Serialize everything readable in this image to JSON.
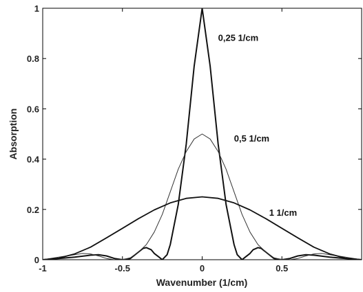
{
  "chart_data": {
    "type": "line",
    "title": "",
    "xlabel": "Wavenumber (1/cm)",
    "ylabel": "Absorption",
    "xlim": [
      -1,
      1
    ],
    "ylim": [
      0,
      1
    ],
    "grid": false,
    "legend": "none",
    "xticks": [
      -1,
      -0.5,
      0,
      0.5,
      1
    ],
    "xtick_labels": [
      "-1",
      "-0.5",
      "0",
      "0.5",
      ""
    ],
    "yticks": [
      0,
      0.2,
      0.4,
      0.6,
      0.8,
      1
    ],
    "ytick_labels": [
      "0",
      "0.2",
      "0.4",
      "0.6",
      "0.8",
      "1"
    ],
    "series": [
      {
        "label": "0,25 1/cm",
        "color": "#111111",
        "x": [
          -1.0,
          -0.9,
          -0.8,
          -0.7,
          -0.65,
          -0.6,
          -0.55,
          -0.5,
          -0.45,
          -0.4,
          -0.37,
          -0.35,
          -0.32,
          -0.3,
          -0.27,
          -0.25,
          -0.22,
          -0.2,
          -0.15,
          -0.1,
          -0.05,
          0.0,
          0.05,
          0.1,
          0.15,
          0.2,
          0.22,
          0.25,
          0.27,
          0.3,
          0.32,
          0.35,
          0.37,
          0.4,
          0.45,
          0.5,
          0.55,
          0.6,
          0.65,
          0.7,
          0.8,
          0.9,
          1.0
        ],
        "y": [
          0.0,
          0.005,
          0.01,
          0.018,
          0.02,
          0.015,
          0.005,
          0.0,
          0.005,
          0.03,
          0.045,
          0.048,
          0.04,
          0.025,
          0.01,
          0.0,
          0.02,
          0.06,
          0.22,
          0.46,
          0.77,
          1.0,
          0.77,
          0.46,
          0.22,
          0.06,
          0.02,
          0.0,
          0.01,
          0.025,
          0.04,
          0.048,
          0.045,
          0.03,
          0.005,
          0.0,
          0.005,
          0.015,
          0.02,
          0.018,
          0.01,
          0.005,
          0.0
        ]
      },
      {
        "label": "0,5 1/cm",
        "color": "#333333",
        "x": [
          -1.0,
          -0.9,
          -0.8,
          -0.75,
          -0.7,
          -0.65,
          -0.6,
          -0.55,
          -0.5,
          -0.45,
          -0.4,
          -0.35,
          -0.3,
          -0.25,
          -0.2,
          -0.15,
          -0.1,
          -0.05,
          0.0,
          0.05,
          0.1,
          0.15,
          0.2,
          0.25,
          0.3,
          0.35,
          0.4,
          0.45,
          0.5,
          0.55,
          0.6,
          0.65,
          0.7,
          0.75,
          0.8,
          0.9,
          1.0
        ],
        "y": [
          0.0,
          0.01,
          0.02,
          0.025,
          0.023,
          0.015,
          0.005,
          0.0,
          0.0,
          0.008,
          0.03,
          0.06,
          0.11,
          0.18,
          0.27,
          0.36,
          0.43,
          0.48,
          0.5,
          0.48,
          0.43,
          0.36,
          0.27,
          0.18,
          0.11,
          0.06,
          0.03,
          0.008,
          0.0,
          0.0,
          0.005,
          0.015,
          0.023,
          0.025,
          0.02,
          0.01,
          0.0
        ]
      },
      {
        "label": "1 1/cm",
        "color": "#111111",
        "x": [
          -1.0,
          -0.9,
          -0.8,
          -0.7,
          -0.6,
          -0.5,
          -0.4,
          -0.3,
          -0.2,
          -0.1,
          0.0,
          0.1,
          0.2,
          0.3,
          0.4,
          0.5,
          0.6,
          0.7,
          0.8,
          0.9,
          1.0
        ],
        "y": [
          0.0,
          0.006,
          0.023,
          0.05,
          0.087,
          0.125,
          0.163,
          0.198,
          0.226,
          0.244,
          0.25,
          0.244,
          0.226,
          0.198,
          0.163,
          0.125,
          0.087,
          0.05,
          0.023,
          0.006,
          0.0
        ]
      }
    ],
    "annotations": [
      {
        "text": "0,25 1/cm",
        "x": 0.1,
        "y": 0.87
      },
      {
        "text": "0,5 1/cm",
        "x": 0.2,
        "y": 0.47
      },
      {
        "text": "1 1/cm",
        "x": 0.42,
        "y": 0.175
      }
    ]
  }
}
